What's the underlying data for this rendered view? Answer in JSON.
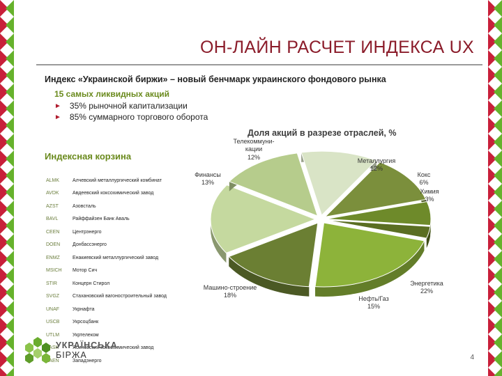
{
  "page": {
    "title": "ОН-ЛАЙН РАСЧЕТ ИНДЕКСА UX",
    "subtitle": "Индекс «Украинской биржи» – новый бенчмарк украинского фондового рынка",
    "bullets_head": "15 самых ликвидных акций",
    "bullets": [
      "35% рыночной капитализации",
      "85% суммарного торгового оборота"
    ],
    "basket_title": "Индексная корзина",
    "page_number": "4"
  },
  "logo": {
    "line1": "УКРАЇНСЬКА",
    "line2": "БІРЖА",
    "icon": "ukrainian-exchange-logo-icon"
  },
  "basket": [
    {
      "code": "ALMK",
      "name": "Алчевский металлургический комбинат"
    },
    {
      "code": "AVDK",
      "name": "Авдеевский коксохимический завод"
    },
    {
      "code": "AZST",
      "name": "Азовсталь"
    },
    {
      "code": "BAVL",
      "name": "Райффайзен Банк Аваль"
    },
    {
      "code": "CEEN",
      "name": "Центрэнерго"
    },
    {
      "code": "DOEN",
      "name": "Донбассэнерго"
    },
    {
      "code": "ENMZ",
      "name": "Енакиевский металлургический завод"
    },
    {
      "code": "MSICH",
      "name": "Мотор Сич"
    },
    {
      "code": "STIR",
      "name": "Концерн Стирол"
    },
    {
      "code": "SVGZ",
      "name": "Стахановский вагоностроительный завод"
    },
    {
      "code": "UNAF",
      "name": "Укрнафта"
    },
    {
      "code": "USCB",
      "name": "Укрсоцбанк"
    },
    {
      "code": "UTLM",
      "name": "Укртелеком"
    },
    {
      "code": "YASK",
      "name": "Ясиновский коксохимический завод"
    },
    {
      "code": "ZAEN",
      "name": "Западэнерго"
    }
  ],
  "chart_data": {
    "type": "pie",
    "title": "Доля акций в разрезе отраслей, %",
    "slices": [
      {
        "label": "Металлургия",
        "value": 12,
        "color": "#7b8f3c"
      },
      {
        "label": "Кокс",
        "value": 6,
        "color": "#6e8a2a"
      },
      {
        "label": "Химия",
        "value": 3,
        "color": "#5a6e22"
      },
      {
        "label": "Энергетика",
        "value": 22,
        "color": "#8db33a"
      },
      {
        "label": "Нефть/Газ",
        "value": 15,
        "color": "#6b7f33"
      },
      {
        "label": "Машино-строение",
        "value": 18,
        "color": "#c5d99f"
      },
      {
        "label": "Финансы",
        "value": 13,
        "color": "#b6cc8c"
      },
      {
        "label": "Телекоммуни-кации",
        "value": 12,
        "color": "#d9e4c6"
      }
    ],
    "value_suffix": "%",
    "legend": "none"
  }
}
